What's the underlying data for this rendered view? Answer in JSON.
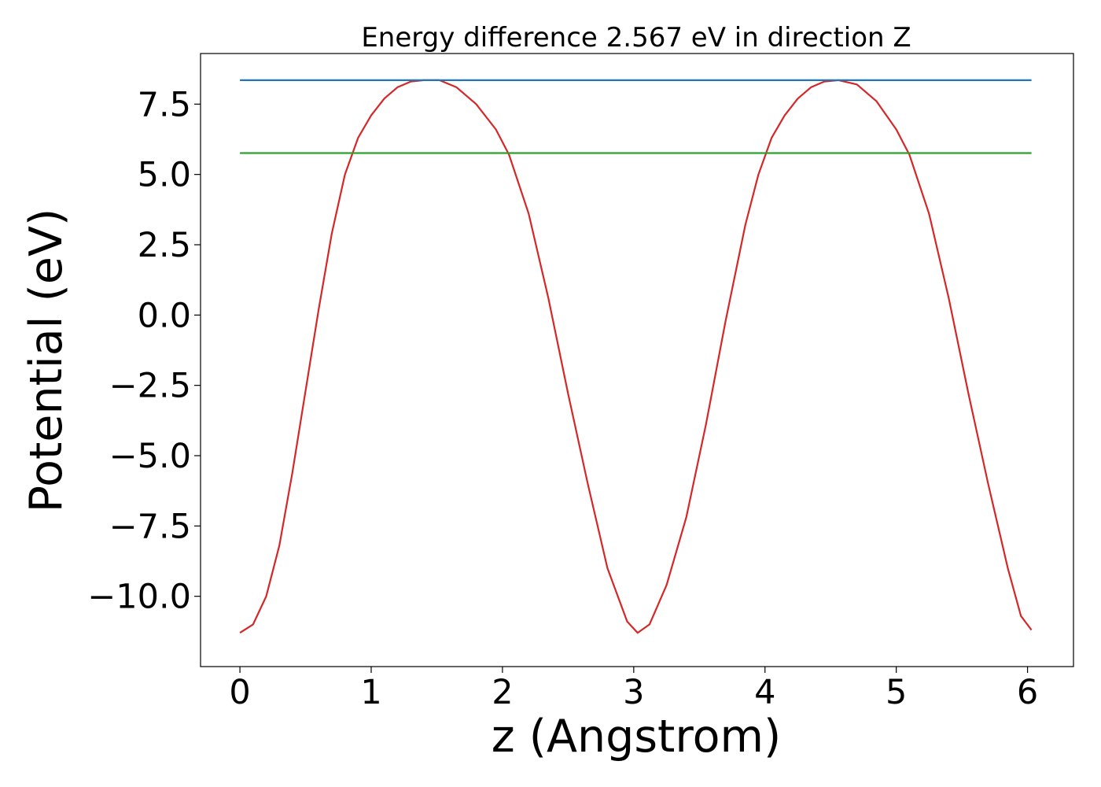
{
  "chart_data": {
    "type": "line",
    "title": "Energy difference 2.567 eV in direction Z",
    "xlabel": "z (Angstrom)",
    "ylabel": "Potential (eV)",
    "xlim": [
      -0.3,
      6.35
    ],
    "ylim": [
      -12.5,
      9.3
    ],
    "xticks": [
      0,
      1,
      2,
      3,
      4,
      5,
      6
    ],
    "xtick_labels": [
      "0",
      "1",
      "2",
      "3",
      "4",
      "5",
      "6"
    ],
    "yticks": [
      7.5,
      5.0,
      2.5,
      0.0,
      -2.5,
      -5.0,
      -7.5,
      -10.0
    ],
    "ytick_labels": [
      "7.5",
      "5.0",
      "2.5",
      "0.0",
      "−2.5",
      "−5.0",
      "−7.5",
      "−10.0"
    ],
    "grid": false,
    "series": [
      {
        "color": "#d62728",
        "x": [
          0.0,
          0.1,
          0.2,
          0.3,
          0.4,
          0.5,
          0.6,
          0.7,
          0.8,
          0.9,
          1.0,
          1.1,
          1.2,
          1.3,
          1.4,
          1.52,
          1.65,
          1.8,
          1.95,
          2.05,
          2.2,
          2.35,
          2.5,
          2.65,
          2.8,
          2.95,
          3.03,
          3.12,
          3.25,
          3.4,
          3.55,
          3.7,
          3.85,
          3.95,
          4.05,
          4.15,
          4.25,
          4.35,
          4.45,
          4.56,
          4.7,
          4.85,
          5.0,
          5.1,
          5.25,
          5.4,
          5.55,
          5.7,
          5.85,
          5.95,
          6.03
        ],
        "y": [
          -11.3,
          -11.0,
          -10.0,
          -8.2,
          -5.6,
          -2.7,
          0.2,
          2.9,
          5.0,
          6.3,
          7.1,
          7.7,
          8.1,
          8.3,
          8.35,
          8.35,
          8.1,
          7.5,
          6.6,
          5.7,
          3.6,
          0.6,
          -2.8,
          -6.0,
          -9.0,
          -10.9,
          -11.3,
          -11.0,
          -9.6,
          -7.2,
          -3.9,
          -0.2,
          3.2,
          5.0,
          6.3,
          7.1,
          7.7,
          8.1,
          8.3,
          8.35,
          8.2,
          7.6,
          6.6,
          5.7,
          3.6,
          0.6,
          -2.8,
          -6.0,
          -9.0,
          -10.7,
          -11.2
        ]
      },
      {
        "color": "#1f77b4",
        "x": [
          0.0,
          6.03
        ],
        "y": [
          8.35,
          8.35
        ]
      },
      {
        "color": "#2ca02c",
        "x": [
          0.0,
          6.03
        ],
        "y": [
          5.76,
          5.76
        ]
      }
    ]
  }
}
